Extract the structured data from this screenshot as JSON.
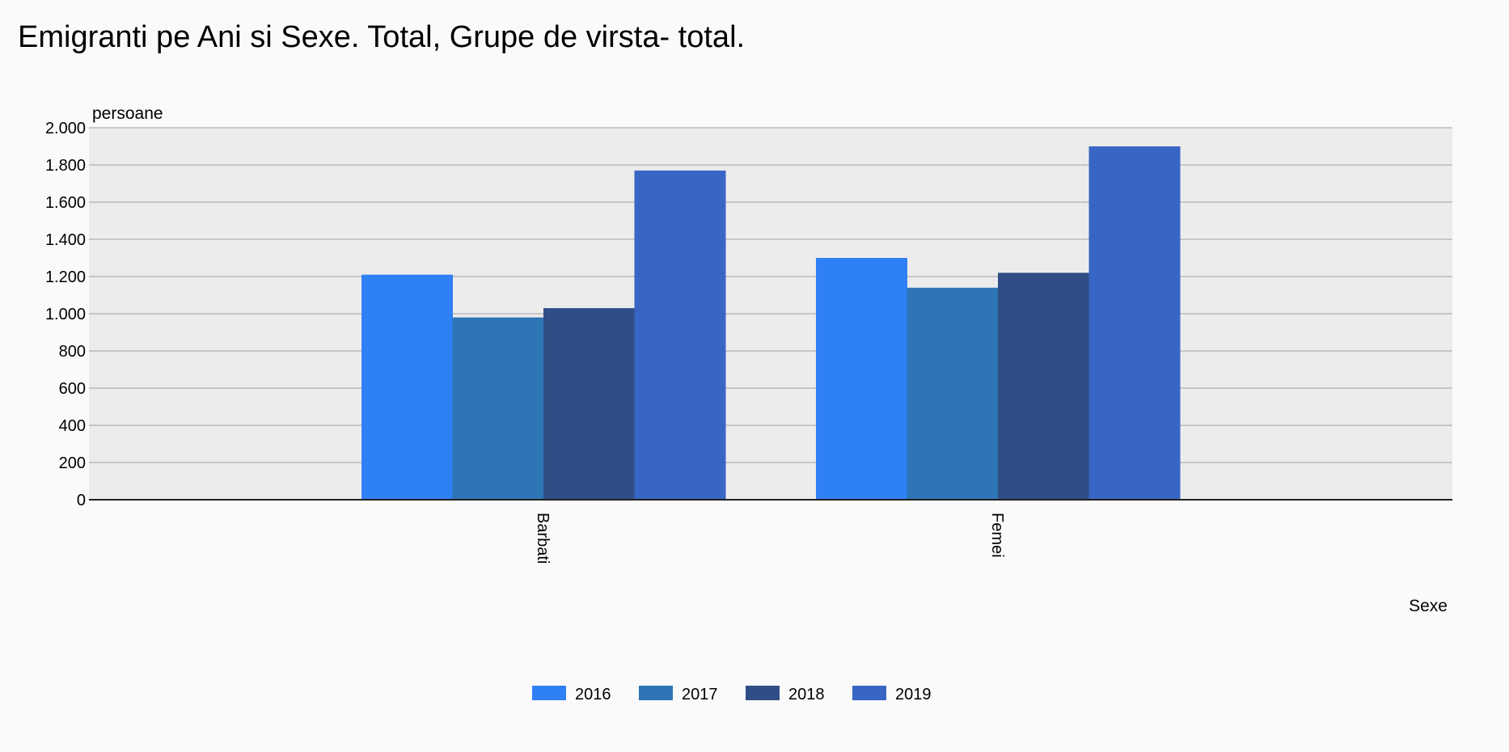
{
  "chart_data": {
    "type": "bar",
    "title": "Emigranti pe Ani si Sexe. Total, Grupe de virsta- total.",
    "xlabel": "Sexe",
    "ylabel": "persoane",
    "categories": [
      "Barbati",
      "Femei"
    ],
    "series": [
      {
        "name": "2016",
        "color": "#3080f5",
        "values": [
          1210,
          1300
        ]
      },
      {
        "name": "2017",
        "color": "#2e75b6",
        "values": [
          980,
          1140
        ]
      },
      {
        "name": "2018",
        "color": "#2f4e86",
        "values": [
          1030,
          1220
        ]
      },
      {
        "name": "2019",
        "color": "#3966c4",
        "values": [
          1770,
          1900
        ]
      }
    ],
    "ylim": [
      0,
      2000
    ],
    "yticks": [
      {
        "value": 0,
        "label": "0"
      },
      {
        "value": 200,
        "label": "200"
      },
      {
        "value": 400,
        "label": "400"
      },
      {
        "value": 600,
        "label": "600"
      },
      {
        "value": 800,
        "label": "800"
      },
      {
        "value": 1000,
        "label": "1.000"
      },
      {
        "value": 1200,
        "label": "1.200"
      },
      {
        "value": 1400,
        "label": "1.400"
      },
      {
        "value": 1600,
        "label": "1.600"
      },
      {
        "value": 1800,
        "label": "1.800"
      },
      {
        "value": 2000,
        "label": "2.000"
      }
    ],
    "grid": true,
    "legend": "bottom",
    "colors": {
      "plot_background": "#ececec",
      "gridline": "#b9b9b9",
      "axis": "#222222"
    }
  }
}
